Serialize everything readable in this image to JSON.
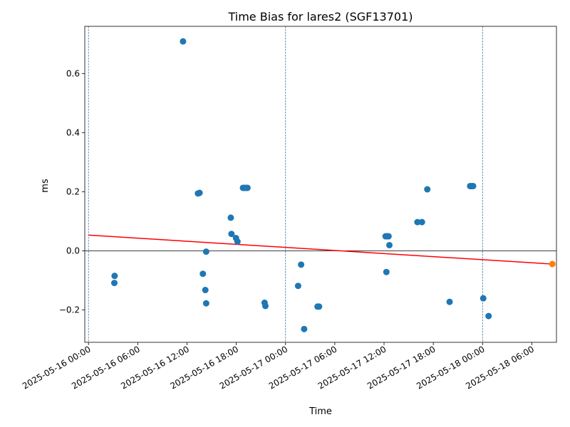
{
  "chart_data": {
    "type": "scatter",
    "title": "Time Bias for lares2 (SGF13701)",
    "xlabel": "Time",
    "ylabel": "ms",
    "xlim": [
      "2025-05-15T23:33",
      "2025-05-18T09:00"
    ],
    "ylim": [
      -0.31,
      0.76
    ],
    "xticks": [
      {
        "t": "2025-05-16T00:00",
        "label": "2025-05-16 00:00"
      },
      {
        "t": "2025-05-16T06:00",
        "label": "2025-05-16 06:00"
      },
      {
        "t": "2025-05-16T12:00",
        "label": "2025-05-16 12:00"
      },
      {
        "t": "2025-05-16T18:00",
        "label": "2025-05-16 18:00"
      },
      {
        "t": "2025-05-17T00:00",
        "label": "2025-05-17 00:00"
      },
      {
        "t": "2025-05-17T06:00",
        "label": "2025-05-17 06:00"
      },
      {
        "t": "2025-05-17T12:00",
        "label": "2025-05-17 12:00"
      },
      {
        "t": "2025-05-17T18:00",
        "label": "2025-05-17 18:00"
      },
      {
        "t": "2025-05-18T00:00",
        "label": "2025-05-18 00:00"
      },
      {
        "t": "2025-05-18T06:00",
        "label": "2025-05-18 06:00"
      }
    ],
    "yticks": [
      {
        "v": -0.2,
        "label": "−0.2"
      },
      {
        "v": 0.0,
        "label": "0.0"
      },
      {
        "v": 0.2,
        "label": "0.2"
      },
      {
        "v": 0.4,
        "label": "0.4"
      },
      {
        "v": 0.6,
        "label": "0.6"
      }
    ],
    "day_lines": [
      "2025-05-16T00:00",
      "2025-05-17T00:00",
      "2025-05-18T00:00"
    ],
    "zero_line": 0.0,
    "trend_line": {
      "x": [
        "2025-05-16T00:00",
        "2025-05-18T08:30"
      ],
      "y": [
        0.053,
        -0.045
      ],
      "color": "#ff0000"
    },
    "series": [
      {
        "color": "#1f77b4",
        "points": [
          {
            "x": "2025-05-16T03:11",
            "y": -0.085
          },
          {
            "x": "2025-05-16T03:09",
            "y": -0.109
          },
          {
            "x": "2025-05-16T11:31",
            "y": 0.709
          },
          {
            "x": "2025-05-16T13:20",
            "y": 0.194
          },
          {
            "x": "2025-05-16T13:32",
            "y": 0.196
          },
          {
            "x": "2025-05-16T13:56",
            "y": -0.078
          },
          {
            "x": "2025-05-16T14:14",
            "y": -0.133
          },
          {
            "x": "2025-05-16T14:20",
            "y": -0.003
          },
          {
            "x": "2025-05-16T14:20",
            "y": -0.178
          },
          {
            "x": "2025-05-16T17:20",
            "y": 0.112
          },
          {
            "x": "2025-05-16T17:25",
            "y": 0.057
          },
          {
            "x": "2025-05-16T17:58",
            "y": 0.043
          },
          {
            "x": "2025-05-16T18:09",
            "y": 0.031
          },
          {
            "x": "2025-05-16T18:49",
            "y": 0.213
          },
          {
            "x": "2025-05-16T19:00",
            "y": 0.213
          },
          {
            "x": "2025-05-16T19:11",
            "y": 0.213
          },
          {
            "x": "2025-05-16T19:22",
            "y": 0.213
          },
          {
            "x": "2025-05-16T21:27",
            "y": -0.176
          },
          {
            "x": "2025-05-16T21:33",
            "y": -0.187
          },
          {
            "x": "2025-05-17T01:32",
            "y": -0.119
          },
          {
            "x": "2025-05-17T01:54",
            "y": -0.047
          },
          {
            "x": "2025-05-17T02:16",
            "y": -0.265
          },
          {
            "x": "2025-05-17T03:54",
            "y": -0.189
          },
          {
            "x": "2025-05-17T04:05",
            "y": -0.189
          },
          {
            "x": "2025-05-17T12:11",
            "y": 0.049
          },
          {
            "x": "2025-05-17T12:22",
            "y": 0.049
          },
          {
            "x": "2025-05-17T12:33",
            "y": 0.049
          },
          {
            "x": "2025-05-17T12:17",
            "y": -0.072
          },
          {
            "x": "2025-05-17T12:39",
            "y": 0.019
          },
          {
            "x": "2025-05-17T16:04",
            "y": 0.097
          },
          {
            "x": "2025-05-17T16:37",
            "y": 0.097
          },
          {
            "x": "2025-05-17T17:16",
            "y": 0.208
          },
          {
            "x": "2025-05-17T19:59",
            "y": -0.173
          },
          {
            "x": "2025-05-17T22:29",
            "y": 0.219
          },
          {
            "x": "2025-05-17T22:40",
            "y": 0.219
          },
          {
            "x": "2025-05-17T22:51",
            "y": 0.219
          },
          {
            "x": "2025-05-18T00:05",
            "y": -0.161
          },
          {
            "x": "2025-05-18T00:44",
            "y": -0.221
          }
        ]
      },
      {
        "color": "#ff7f0e",
        "points": [
          {
            "x": "2025-05-18T08:30",
            "y": -0.045
          }
        ]
      }
    ],
    "grid": false
  }
}
